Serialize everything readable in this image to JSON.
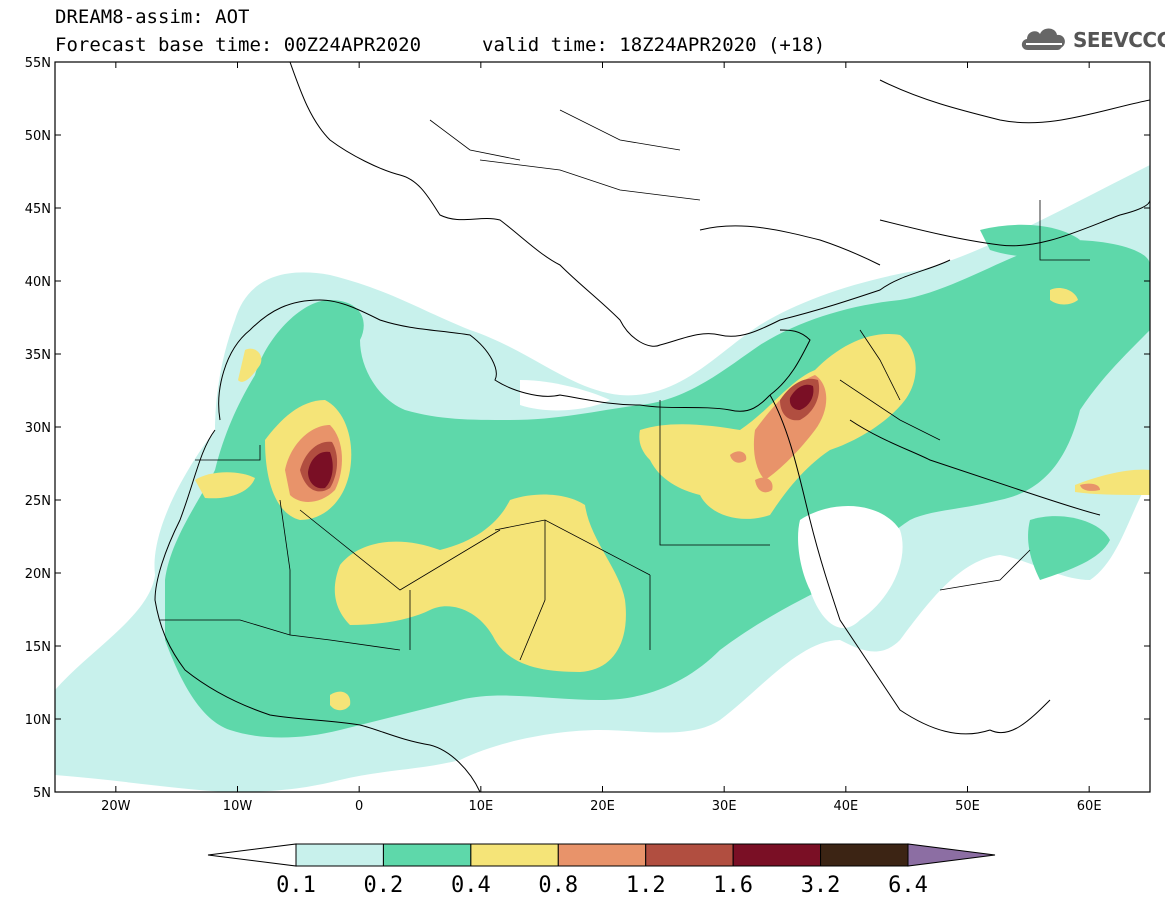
{
  "header": {
    "title": "DREAM8-assim: AOT",
    "base_time": "Forecast base time: 00Z24APR2020",
    "valid_time": "valid time: 18Z24APR2020 (+18)",
    "logo_text": "SEEVCCC",
    "logo_icon": "cloud-icon"
  },
  "map": {
    "lat_labels": [
      "55N",
      "50N",
      "45N",
      "40N",
      "35N",
      "30N",
      "25N",
      "20N",
      "15N",
      "10N",
      "5N"
    ],
    "lon_labels": [
      "20W",
      "10W",
      "0",
      "10E",
      "20E",
      "30E",
      "40E",
      "50E",
      "60E"
    ],
    "extent": {
      "lon": [
        -25,
        65
      ],
      "lat": [
        5,
        55
      ]
    }
  },
  "colorbar": {
    "labels": [
      "0.1",
      "0.2",
      "0.4",
      "0.8",
      "1.2",
      "1.6",
      "3.2",
      "6.4"
    ],
    "colors": [
      "#ffffff",
      "#c8f1ec",
      "#5ed8aa",
      "#f5e478",
      "#e8936a",
      "#b14e40",
      "#7a0f25",
      "#3c2414",
      "#8c6ea3"
    ]
  }
}
